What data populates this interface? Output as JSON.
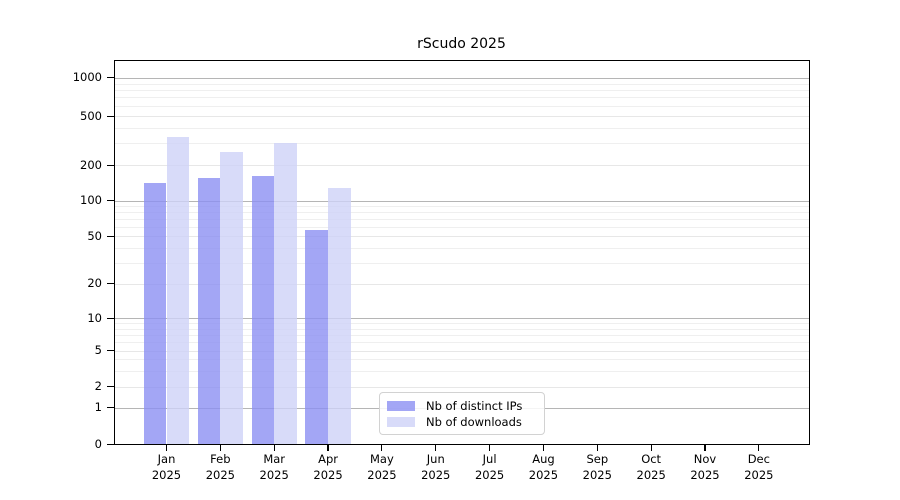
{
  "title": "rScudo 2025",
  "legend": {
    "items": [
      {
        "label": "Nb of distinct IPs",
        "color": "rgba(140,144,242,0.8)"
      },
      {
        "label": "Nb of downloads",
        "color": "rgba(206,210,248,0.8)"
      }
    ]
  },
  "chart_data": {
    "type": "bar",
    "title": "rScudo 2025",
    "categories": [
      "Jan 2025",
      "Feb 2025",
      "Mar 2025",
      "Apr 2025",
      "May 2025",
      "Jun 2025",
      "Jul 2025",
      "Aug 2025",
      "Sep 2025",
      "Oct 2025",
      "Nov 2025",
      "Dec 2025"
    ],
    "months": [
      "Jan",
      "Feb",
      "Mar",
      "Apr",
      "May",
      "Jun",
      "Jul",
      "Aug",
      "Sep",
      "Oct",
      "Nov",
      "Dec"
    ],
    "year": "2025",
    "series": [
      {
        "name": "Nb of distinct IPs",
        "color": "rgba(140,144,242,0.8)",
        "values": [
          140,
          156,
          161,
          56,
          null,
          null,
          null,
          null,
          null,
          null,
          null,
          null
        ]
      },
      {
        "name": "Nb of downloads",
        "color": "rgba(206,210,248,0.8)",
        "values": [
          335,
          255,
          303,
          127,
          null,
          null,
          null,
          null,
          null,
          null,
          null,
          null
        ]
      }
    ],
    "y_axis": {
      "scale": "log-like (0 baseline)",
      "tick_labels": [
        "1000",
        "500",
        "200",
        "100",
        "50",
        "20",
        "10",
        "5",
        "2",
        "1",
        "0"
      ],
      "ticks": [
        1000,
        500,
        200,
        100,
        50,
        20,
        10,
        5,
        2,
        1,
        0
      ]
    },
    "x_axis": {
      "tick_labels_line2": "2025"
    },
    "grid": "horizontal, minor log gridlines",
    "legend_position": "lower center-left inside plot"
  }
}
